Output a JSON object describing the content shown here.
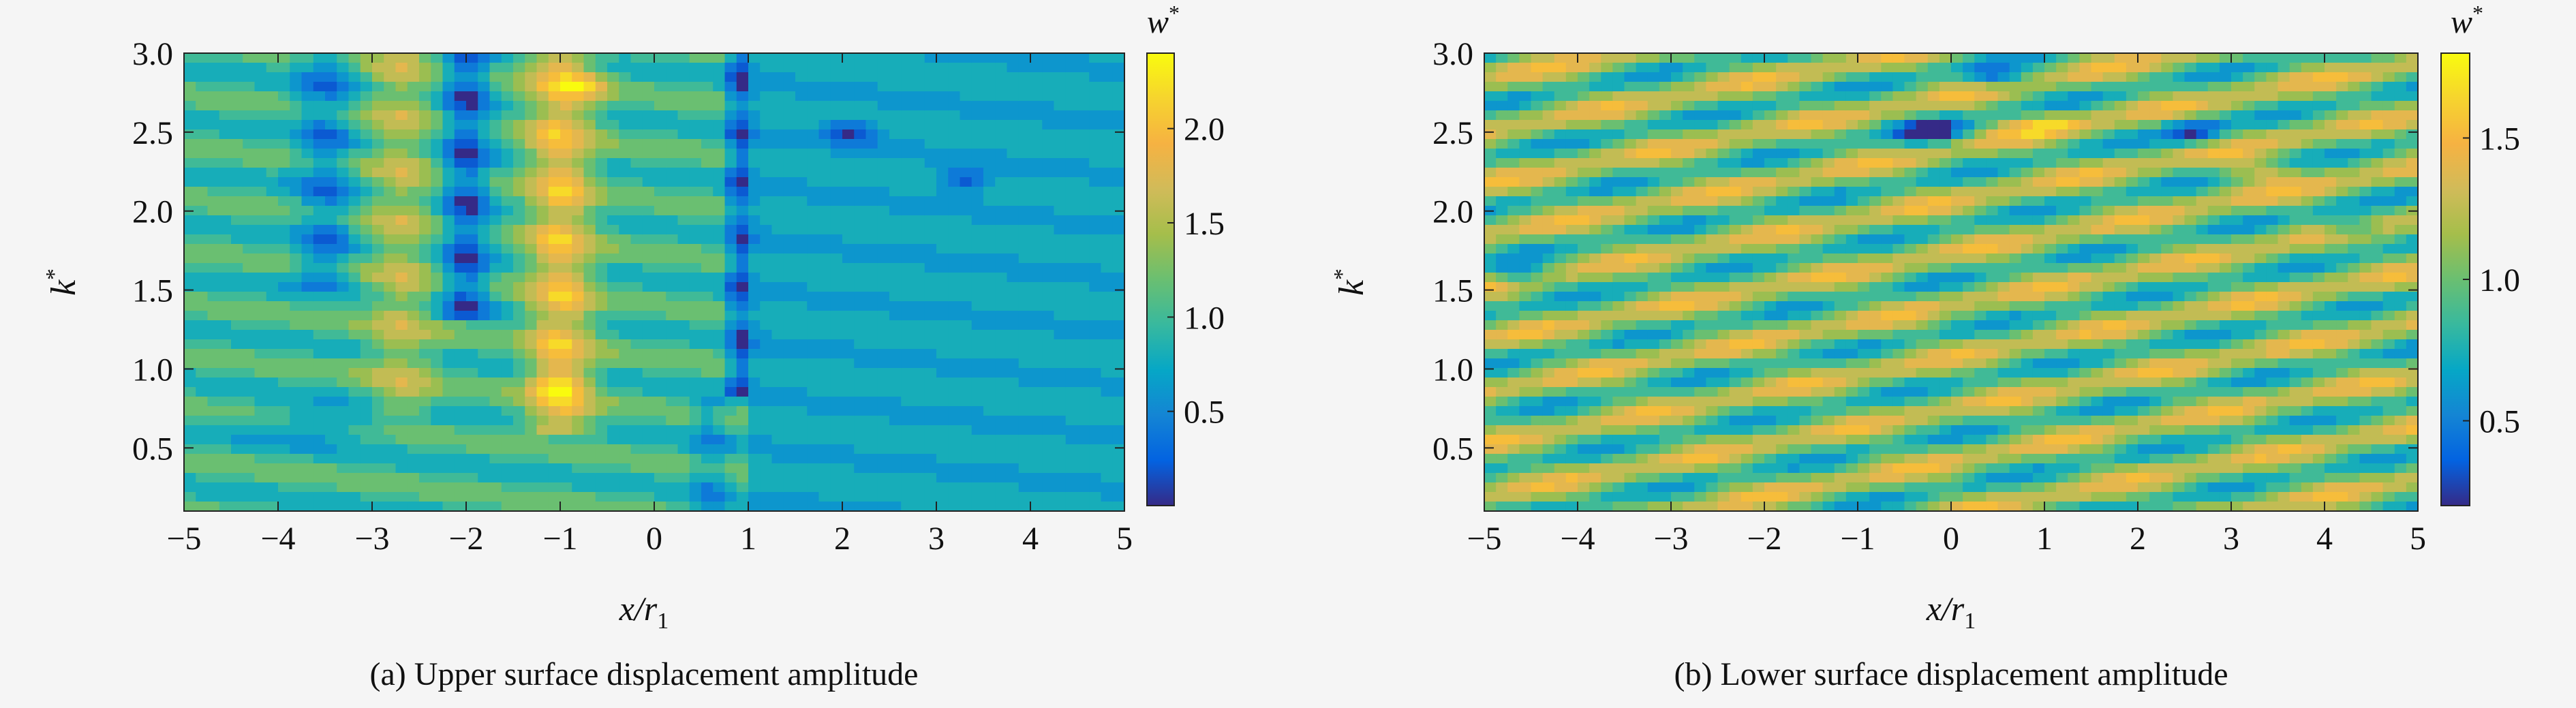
{
  "chart_data": [
    {
      "type": "heatmap",
      "panel_id": "a",
      "caption": "(a) Upper surface displacement amplitude",
      "xlabel": "x/r",
      "xlabel_sub": "1",
      "ylabel": "k",
      "ylabel_sup": "*",
      "colorbar_label": "w",
      "colorbar_label_sup": "*",
      "xlim": [
        -5,
        5
      ],
      "ylim": [
        0.1,
        3.0
      ],
      "xticks": [
        -5,
        -4,
        -3,
        -2,
        -1,
        0,
        1,
        2,
        3,
        4,
        5
      ],
      "xtick_labels": [
        "−5",
        "−4",
        "−3",
        "−2",
        "−1",
        "0",
        "1",
        "2",
        "3",
        "4",
        "5"
      ],
      "yticks": [
        0.5,
        1.0,
        1.5,
        2.0,
        2.5,
        3.0
      ],
      "ytick_labels": [
        "0.5",
        "1.0",
        "1.5",
        "2.0",
        "2.5",
        "3.0"
      ],
      "colorbar_range": [
        0.0,
        2.4
      ],
      "colorbar_ticks": [
        0.5,
        1.0,
        1.5,
        2.0
      ],
      "colorbar_tick_labels": [
        "0.5",
        "1.0",
        "1.5",
        "2.0"
      ],
      "colormap": "parula",
      "field": {
        "base": 1.0,
        "x_range": [
          -5,
          5
        ],
        "k_range": [
          0.1,
          3.0
        ],
        "features": [
          {
            "x_center": 0.9,
            "x_width": 0.12,
            "k_min": 0.8,
            "k_max": 3.0,
            "amplitude": -0.8
          },
          {
            "x_center": 0.6,
            "x_width": 0.2,
            "k_min": 0.1,
            "k_max": 0.8,
            "amplitude": -0.35
          },
          {
            "x_center": -1.0,
            "x_width": 0.35,
            "k_min": 0.6,
            "k_max": 3.0,
            "amplitude": 0.9
          },
          {
            "x_center": -2.0,
            "x_width": 0.25,
            "k_min": 1.3,
            "k_max": 3.0,
            "amplitude": -0.75
          },
          {
            "x_center": -2.7,
            "x_width": 0.35,
            "k_min": 0.7,
            "k_max": 3.0,
            "amplitude": 0.5
          },
          {
            "x_center": -3.5,
            "x_width": 0.3,
            "k_min": 1.5,
            "k_max": 3.0,
            "amplitude": -0.5
          },
          {
            "x_center": 2.1,
            "x_width": 0.3,
            "k_center": 2.5,
            "k_width": 0.08,
            "amplitude": -0.7
          },
          {
            "x_center": 3.3,
            "x_width": 0.3,
            "k_center": 2.2,
            "k_width": 0.08,
            "amplitude": -0.6
          },
          {
            "x_center": -0.7,
            "x_width": 0.25,
            "k_center": 2.8,
            "k_width": 0.08,
            "amplitude": 0.6
          },
          {
            "x_center": -1.0,
            "x_width": 0.3,
            "k_center": 0.9,
            "k_width": 0.1,
            "amplitude": 0.4
          },
          {
            "x_center": -3.6,
            "x_width": 0.8,
            "k_center": 0.65,
            "k_width": 0.12,
            "amplitude": -0.4
          }
        ]
      }
    },
    {
      "type": "heatmap",
      "panel_id": "b",
      "caption": "(b) Lower surface displacement amplitude",
      "xlabel": "x/r",
      "xlabel_sub": "1",
      "ylabel": "k",
      "ylabel_sup": "*",
      "colorbar_label": "w",
      "colorbar_label_sup": "*",
      "xlim": [
        -5,
        5
      ],
      "ylim": [
        0.1,
        3.0
      ],
      "xticks": [
        -5,
        -4,
        -3,
        -2,
        -1,
        0,
        1,
        2,
        3,
        4,
        5
      ],
      "xtick_labels": [
        "−5",
        "−4",
        "−3",
        "−2",
        "−1",
        "0",
        "1",
        "2",
        "3",
        "4",
        "5"
      ],
      "yticks": [
        0.5,
        1.0,
        1.5,
        2.0,
        2.5,
        3.0
      ],
      "ytick_labels": [
        "0.5",
        "1.0",
        "1.5",
        "2.0",
        "2.5",
        "3.0"
      ],
      "colorbar_range": [
        0.2,
        1.8
      ],
      "colorbar_ticks": [
        0.5,
        1.0,
        1.5
      ],
      "colorbar_tick_labels": [
        "0.5",
        "1.0",
        "1.5"
      ],
      "colormap": "parula",
      "field": {
        "base": 1.05,
        "band_slope": 0.11,
        "band_spacing": 0.33,
        "band_amplitude": 0.35,
        "features": [
          {
            "x_center": -0.2,
            "x_width": 0.35,
            "k_center": 2.5,
            "k_width": 0.08,
            "amplitude": -0.7
          },
          {
            "x_center": 2.6,
            "x_width": 0.35,
            "k_center": 2.5,
            "k_width": 0.08,
            "amplitude": -0.6
          },
          {
            "x_center": 4.3,
            "x_width": 0.3,
            "k_center": 1.9,
            "k_width": 0.08,
            "amplitude": -0.55
          },
          {
            "x_center": -4.6,
            "x_width": 0.3,
            "k_center": 1.6,
            "k_width": 0.07,
            "amplitude": -0.5
          },
          {
            "x_center": 0.5,
            "x_width": 0.3,
            "k_center": 2.85,
            "k_width": 0.07,
            "amplitude": -0.55
          },
          {
            "x_center": 3.3,
            "x_width": 0.4,
            "k_center": 2.25,
            "k_width": 0.08,
            "amplitude": 0.4
          },
          {
            "x_center": 1.0,
            "x_width": 0.4,
            "k_center": 2.55,
            "k_width": 0.07,
            "amplitude": 0.35
          }
        ]
      }
    }
  ]
}
